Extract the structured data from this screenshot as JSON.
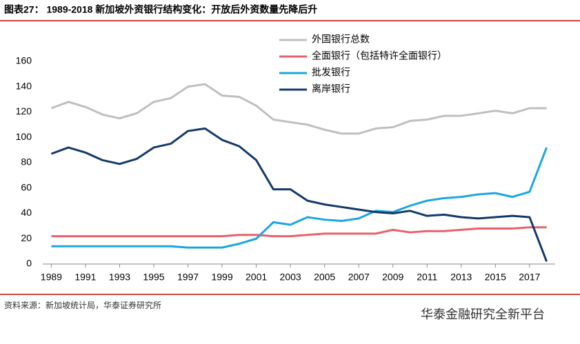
{
  "chart_data": {
    "type": "line",
    "title": "图表27：  1989-2018 新加坡外资银行结构变化：开放后外资数量先降后升",
    "source": "资料来源：新加坡统计局，华泰证券研究所",
    "watermark": "华泰金融研究全新平台",
    "x": [
      1989,
      1990,
      1991,
      1992,
      1993,
      1994,
      1995,
      1996,
      1997,
      1998,
      1999,
      2000,
      2001,
      2002,
      2003,
      2004,
      2005,
      2006,
      2007,
      2008,
      2009,
      2010,
      2011,
      2012,
      2013,
      2014,
      2015,
      2016,
      2017,
      2018
    ],
    "series": [
      {
        "name": "外国银行总数",
        "color": "#bfbfbf",
        "values": [
          123,
          128,
          124,
          118,
          115,
          119,
          128,
          131,
          140,
          142,
          133,
          132,
          125,
          114,
          112,
          110,
          106,
          103,
          103,
          107,
          108,
          113,
          114,
          117,
          117,
          119,
          121,
          119,
          123,
          123
        ]
      },
      {
        "name": "全面银行（包括特许全面银行）",
        "color": "#e8606a",
        "values": [
          22,
          22,
          22,
          22,
          22,
          22,
          22,
          22,
          22,
          22,
          22,
          23,
          23,
          22,
          22,
          23,
          24,
          24,
          24,
          24,
          27,
          25,
          26,
          26,
          27,
          28,
          28,
          28,
          29,
          29
        ]
      },
      {
        "name": "批发银行",
        "color": "#1aa6e0",
        "values": [
          14,
          14,
          14,
          14,
          14,
          14,
          14,
          14,
          13,
          13,
          13,
          16,
          20,
          33,
          31,
          37,
          35,
          34,
          36,
          42,
          41,
          46,
          50,
          52,
          53,
          55,
          56,
          53,
          57,
          92
        ]
      },
      {
        "name": "离岸银行",
        "color": "#14386b",
        "values": [
          87,
          92,
          88,
          82,
          79,
          83,
          92,
          95,
          105,
          107,
          98,
          93,
          82,
          59,
          59,
          50,
          47,
          45,
          43,
          41,
          40,
          42,
          38,
          39,
          37,
          36,
          37,
          38,
          37,
          2
        ]
      }
    ],
    "xlim": [
      1988.5,
      2018.5
    ],
    "xticks": [
      1989,
      1991,
      1993,
      1995,
      1997,
      1999,
      2001,
      2003,
      2005,
      2007,
      2009,
      2011,
      2013,
      2015,
      2017
    ],
    "ylim": [
      0,
      160
    ],
    "yticks": [
      0,
      20,
      40,
      60,
      80,
      100,
      120,
      140,
      160
    ],
    "grid": false
  }
}
